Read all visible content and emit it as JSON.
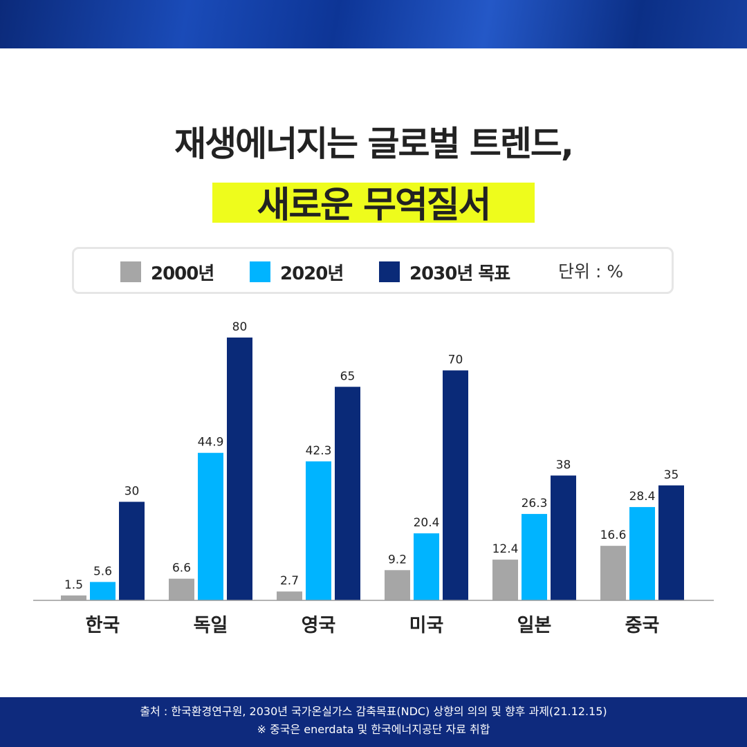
{
  "title_line1": "재생에너지는 글로벌 트렌드,",
  "title_line2": "새로운 무역질서",
  "legend": {
    "items": [
      {
        "label": "2000년",
        "color": "#a6a6a6"
      },
      {
        "label": "2020년",
        "color": "#00b4ff"
      },
      {
        "label": "2030년 목표",
        "color": "#0a2a78"
      }
    ],
    "unit": "단위 : %"
  },
  "chart_data": {
    "type": "bar",
    "categories": [
      "한국",
      "독일",
      "영국",
      "미국",
      "일본",
      "중국"
    ],
    "series": [
      {
        "name": "2000년",
        "values": [
          1.5,
          6.6,
          2.7,
          9.2,
          12.4,
          16.6
        ],
        "labels": [
          "1.5",
          "6.6",
          "2.7",
          "9.2",
          "12.4",
          "16.6"
        ],
        "color": "#a6a6a6"
      },
      {
        "name": "2020년",
        "values": [
          5.6,
          44.9,
          42.3,
          20.4,
          26.3,
          28.4
        ],
        "labels": [
          "5.6",
          "44.9",
          "42.3",
          "20.4",
          "26.3",
          "28.4"
        ],
        "color": "#00b4ff"
      },
      {
        "name": "2030년 목표",
        "values": [
          30,
          80,
          65,
          70,
          38,
          35
        ],
        "labels": [
          "30",
          "80",
          "65",
          "70",
          "38",
          "35"
        ],
        "color": "#0a2a78"
      }
    ],
    "ylim": [
      0,
      80
    ]
  },
  "footer": {
    "source": "출처 : 한국환경연구원, 2030년 국가온실가스 감축목표(NDC) 상향의 의의 및 향후 과제(21.12.15)",
    "note": "※ 중국은 enerdata 및 한국에너지공단 자료 취합"
  }
}
